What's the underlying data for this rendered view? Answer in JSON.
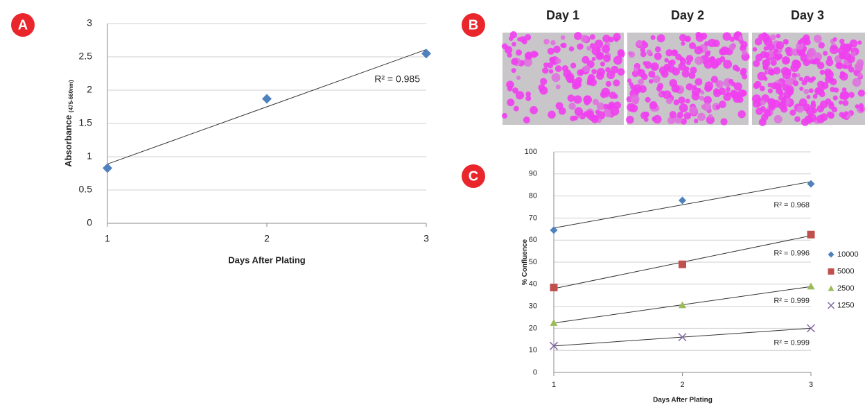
{
  "panels": {
    "labels": [
      "A",
      "B",
      "C"
    ],
    "image_labels": [
      "Day 1",
      "Day 2",
      "Day 3"
    ]
  },
  "chart_data": [
    {
      "type": "scatter",
      "x": [
        1,
        2,
        3
      ],
      "values": [
        0.83,
        1.87,
        2.55
      ],
      "color": "#4f81bd",
      "marker": "diamond",
      "trendline": true,
      "r2_label": "R² = 0.985",
      "x_label": "Days After Plating",
      "y_label": "Absorbance",
      "y_label_sub": "(475-660nm)",
      "xlim": [
        1,
        3
      ],
      "xticks": [
        1,
        2,
        3
      ],
      "ylim": [
        0,
        3
      ],
      "yticks": [
        0,
        0.5,
        1,
        1.5,
        2,
        2.5,
        3
      ],
      "grid": true
    },
    {
      "type": "scatter",
      "x": [
        1,
        2,
        3
      ],
      "trendline": true,
      "legend": "right",
      "x_label": "Days After Plating",
      "y_label": "% Confluence",
      "xlim": [
        1,
        3
      ],
      "xticks": [
        1,
        2,
        3
      ],
      "ylim": [
        0,
        100
      ],
      "yticks": [
        0,
        10,
        20,
        30,
        40,
        50,
        60,
        70,
        80,
        90,
        100
      ],
      "grid": true,
      "series": [
        {
          "name": "10000",
          "color": "#4f81bd",
          "marker": "diamond",
          "values": [
            64.5,
            78,
            85.5
          ],
          "r2_label": "R² = 0.968"
        },
        {
          "name": "5000",
          "color": "#c0504d",
          "marker": "square",
          "values": [
            38.5,
            49,
            62.5
          ],
          "r2_label": "R² = 0.996"
        },
        {
          "name": "2500",
          "color": "#9bbb59",
          "marker": "triangle",
          "values": [
            22.5,
            30.5,
            39
          ],
          "r2_label": "R² = 0.999"
        },
        {
          "name": "1250",
          "color": "#8064a2",
          "marker": "x",
          "values": [
            12,
            16,
            20
          ],
          "r2_label": "R² = 0.999"
        }
      ]
    }
  ]
}
